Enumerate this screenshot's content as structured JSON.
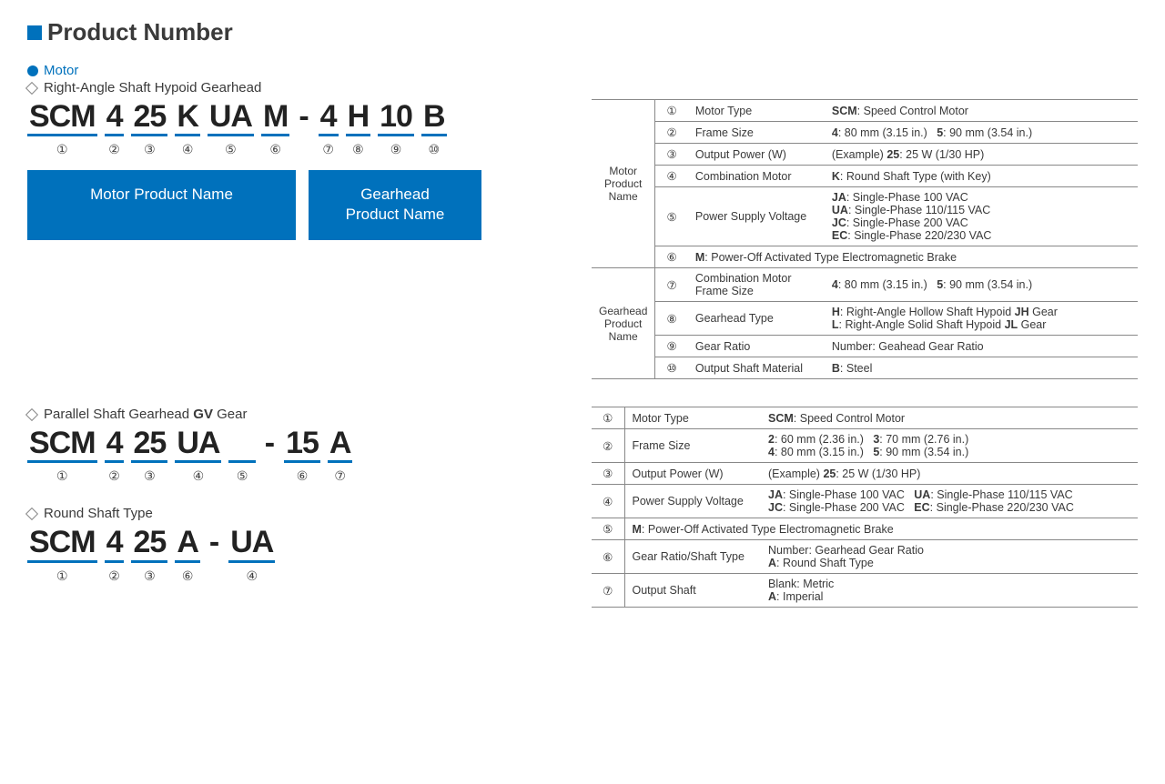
{
  "header": {
    "title": "Product Number"
  },
  "motor_label": "Motor",
  "section1": {
    "subtitle": "Right-Angle Shaft Hypoid Gearhead",
    "segments": [
      "SCM",
      "4",
      "25",
      "K",
      "UA",
      "M",
      "-",
      "4",
      "H",
      "10",
      "B"
    ],
    "nums": [
      "①",
      "②",
      "③",
      "④",
      "⑤",
      "⑥",
      "",
      "⑦",
      "⑧",
      "⑨",
      "⑩"
    ],
    "box_motor": "Motor Product Name",
    "box_gear": "Gearhead\nProduct Name"
  },
  "table1": {
    "group1": "Motor\nProduct\nName",
    "group2": "Gearhead\nProduct\nName",
    "rows": [
      {
        "n": "①",
        "l": "Motor Type",
        "v": "<b>SCM</b>: Speed Control Motor"
      },
      {
        "n": "②",
        "l": "Frame Size",
        "v": "<b>4</b>: 80 mm (3.15 in.)&nbsp;&nbsp;&nbsp;<b>5</b>: 90 mm (3.54 in.)"
      },
      {
        "n": "③",
        "l": "Output Power (W)",
        "v": "(Example) <b>25</b>: 25 W (1/30 HP)"
      },
      {
        "n": "④",
        "l": "Combination Motor",
        "v": "<b>K</b>: Round Shaft Type (with Key)"
      },
      {
        "n": "⑤",
        "l": "Power Supply Voltage",
        "v": "<b>JA</b>: Single-Phase 100 VAC<br><b>UA</b>: Single-Phase 110/115 VAC<br><b>JC</b>: Single-Phase 200 VAC<br><b>EC</b>: Single-Phase 220/230 VAC"
      },
      {
        "n": "⑥",
        "l": "",
        "v": "<b>M</b>: Power-Off Activated Type Electromagnetic Brake"
      },
      {
        "n": "⑦",
        "l": "Combination Motor Frame Size",
        "v": "<b>4</b>: 80 mm (3.15 in.)&nbsp;&nbsp;&nbsp;<b>5</b>: 90 mm (3.54 in.)"
      },
      {
        "n": "⑧",
        "l": "Gearhead Type",
        "v": "<b>H</b>: Right-Angle Hollow Shaft Hypoid <b>JH</b> Gear<br><b>L</b>: Right-Angle Solid Shaft Hypoid <b>JL</b> Gear"
      },
      {
        "n": "⑨",
        "l": "Gear Ratio",
        "v": "Number: Geahead Gear Ratio"
      },
      {
        "n": "⑩",
        "l": "Output Shaft Material",
        "v": "<b>B</b>: Steel"
      }
    ]
  },
  "section2": {
    "subtitle_pre": "Parallel Shaft Gearhead ",
    "subtitle_b": "GV",
    "subtitle_post": " Gear",
    "segments": [
      "SCM",
      "4",
      "25",
      "UA",
      " ",
      "-",
      "15",
      "A"
    ],
    "nums": [
      "①",
      "②",
      "③",
      "④",
      "⑤",
      "",
      "⑥",
      "⑦"
    ]
  },
  "section3": {
    "subtitle": "Round Shaft Type",
    "segments": [
      "SCM",
      "4",
      "25",
      "A",
      "-",
      "UA"
    ],
    "nums": [
      "①",
      "②",
      "③",
      "⑥",
      "",
      "④"
    ]
  },
  "table2": {
    "rows": [
      {
        "n": "①",
        "l": "Motor Type",
        "v": "<b>SCM</b>: Speed Control Motor"
      },
      {
        "n": "②",
        "l": "Frame Size",
        "v": "<b>2</b>: 60 mm (2.36 in.)&nbsp;&nbsp;&nbsp;<b>3</b>: 70 mm (2.76 in.)<br><b>4</b>: 80 mm (3.15 in.)&nbsp;&nbsp;&nbsp;<b>5</b>: 90 mm (3.54 in.)"
      },
      {
        "n": "③",
        "l": "Output Power (W)",
        "v": "(Example) <b>25</b>: 25 W (1/30 HP)"
      },
      {
        "n": "④",
        "l": "Power Supply Voltage",
        "v": "<b>JA</b>: Single-Phase 100 VAC&nbsp;&nbsp;&nbsp;<b>UA</b>: Single-Phase 110/115 VAC<br><b>JC</b>: Single-Phase 200 VAC&nbsp;&nbsp;&nbsp;<b>EC</b>: Single-Phase 220/230 VAC"
      },
      {
        "n": "⑤",
        "l": "",
        "v": "<b>M</b>: Power-Off Activated Type Electromagnetic Brake"
      },
      {
        "n": "⑥",
        "l": "Gear Ratio/Shaft Type",
        "v": "Number: Gearhead Gear Ratio<br><b>A</b>: Round Shaft Type"
      },
      {
        "n": "⑦",
        "l": "Output Shaft",
        "v": "Blank: Metric<br><b>A</b>: Imperial"
      }
    ]
  }
}
